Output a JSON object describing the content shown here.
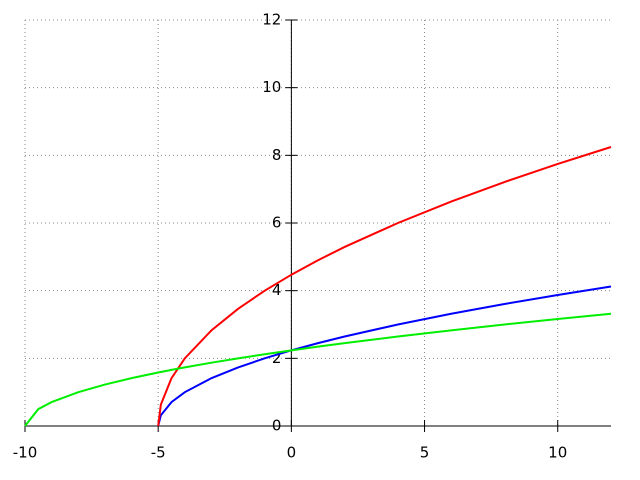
{
  "chart_data": {
    "type": "line",
    "x": [
      -10,
      -9.5,
      -9,
      -8,
      -7,
      -6,
      -5,
      -4.9,
      -4.5,
      -4,
      -3,
      -2,
      -1,
      0,
      1,
      2,
      4,
      6,
      8,
      10,
      12
    ],
    "series": [
      {
        "color": "#0000ff",
        "values": [
          null,
          null,
          null,
          null,
          null,
          null,
          0,
          0.316,
          0.707,
          1,
          1.414,
          1.732,
          2,
          2.236,
          2.449,
          2.646,
          3,
          3.317,
          3.606,
          3.873,
          4.123
        ]
      },
      {
        "color": "#ff0000",
        "values": [
          null,
          null,
          null,
          null,
          null,
          null,
          0,
          0.632,
          1.414,
          2,
          2.828,
          3.464,
          4,
          4.472,
          4.899,
          5.292,
          6,
          6.633,
          7.211,
          7.746,
          8.246
        ]
      },
      {
        "color": "#00ee00",
        "values": [
          0,
          0.5,
          0.707,
          1,
          1.225,
          1.414,
          1.581,
          1.597,
          1.658,
          1.732,
          1.871,
          2,
          2.121,
          2.236,
          2.345,
          2.449,
          2.646,
          2.828,
          3,
          3.162,
          3.317
        ]
      }
    ],
    "xlim": [
      -10,
      12
    ],
    "ylim": [
      0,
      12
    ],
    "xticks": [
      -10,
      -5,
      0,
      5,
      10
    ],
    "yticks": [
      0,
      2,
      4,
      6,
      8,
      10,
      12
    ],
    "grid": true
  }
}
